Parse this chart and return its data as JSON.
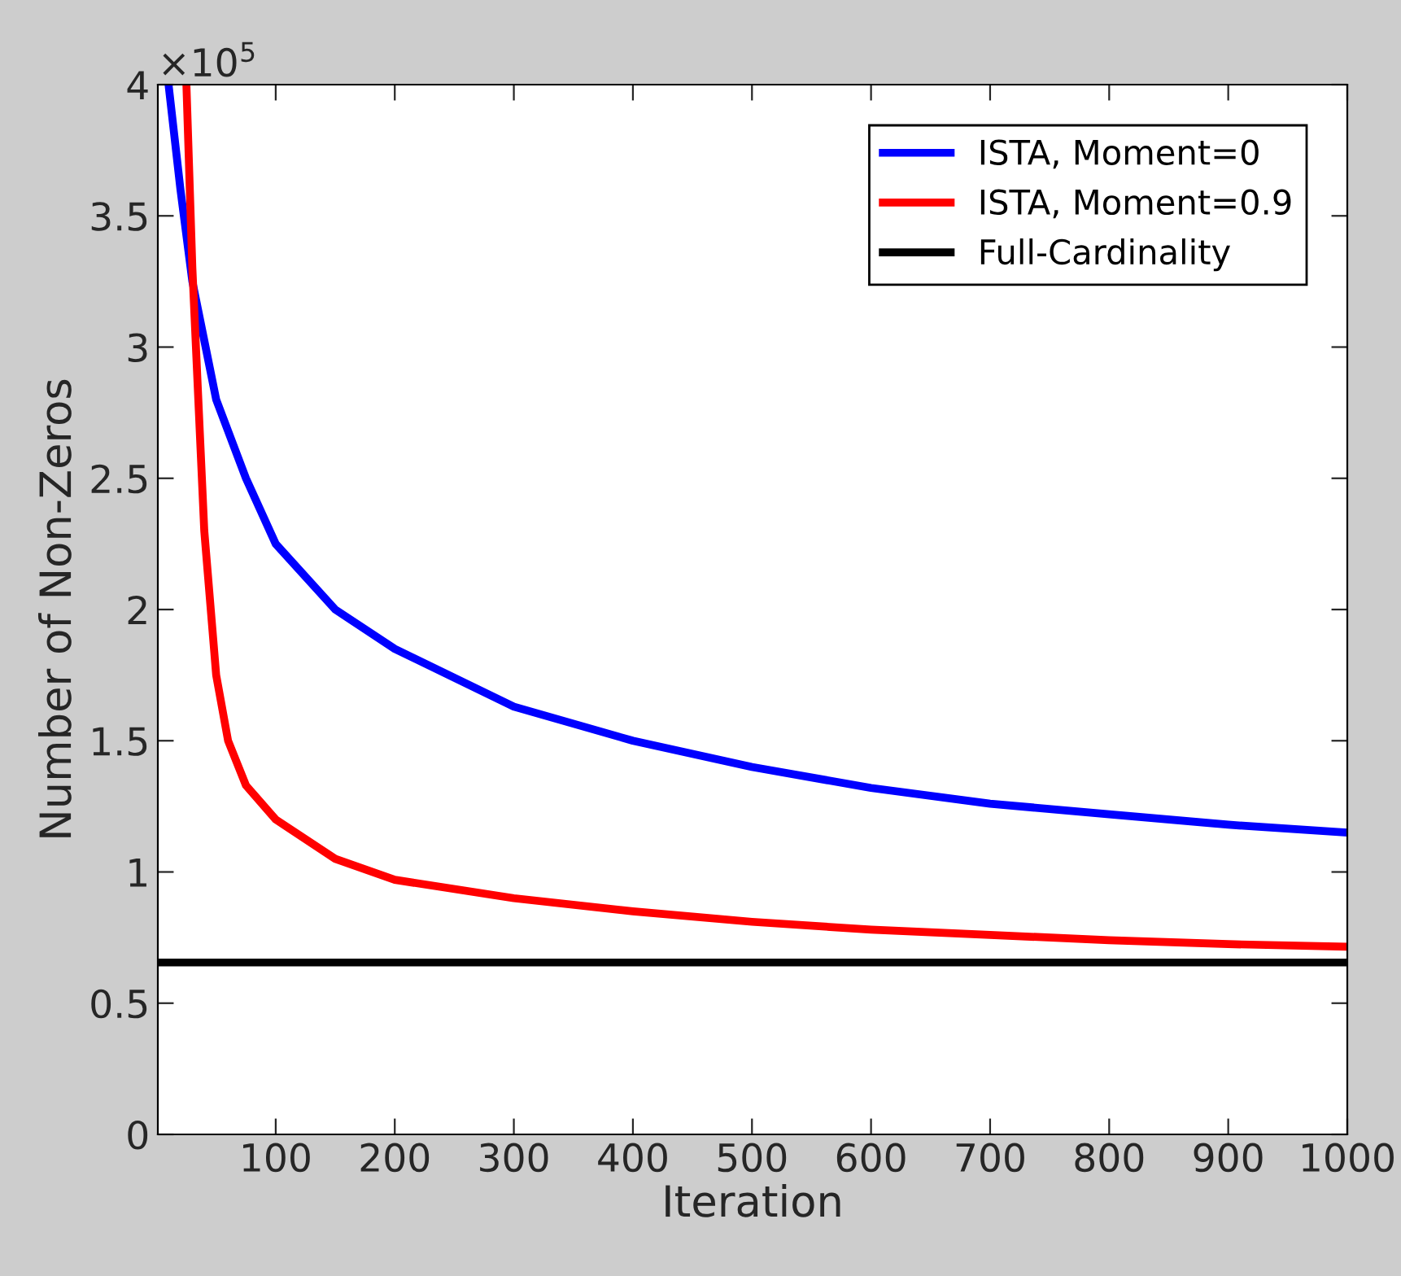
{
  "chart_data": {
    "type": "line",
    "xlabel": "Iteration",
    "ylabel": "Number of Non-Zeros",
    "annotations": [
      "×10$^{5}$"
    ],
    "series": [
      {
        "name": "ISTA, Moment=0",
        "color": "#0000ff",
        "x": [
          10,
          20,
          30,
          50,
          75,
          100,
          150,
          200,
          300,
          400,
          500,
          600,
          700,
          800,
          900,
          1000
        ],
        "values": [
          4.0,
          3.6,
          3.25,
          2.8,
          2.5,
          2.25,
          2.0,
          1.85,
          1.63,
          1.5,
          1.4,
          1.32,
          1.26,
          1.22,
          1.18,
          1.15
        ]
      },
      {
        "name": "ISTA, Moment=0.9",
        "color": "#ff0000",
        "x": [
          25,
          30,
          40,
          50,
          60,
          75,
          100,
          150,
          200,
          300,
          400,
          500,
          600,
          700,
          800,
          900,
          1000
        ],
        "values": [
          4.0,
          3.3,
          2.3,
          1.75,
          1.5,
          1.33,
          1.2,
          1.05,
          0.97,
          0.9,
          0.85,
          0.81,
          0.78,
          0.76,
          0.74,
          0.725,
          0.715
        ]
      },
      {
        "name": "Full-Cardinality",
        "color": "#000000",
        "x": [
          1,
          1000
        ],
        "values": [
          0.655,
          0.655
        ]
      }
    ],
    "xlim": [
      1,
      1000
    ],
    "xticks": [
      100,
      200,
      300,
      400,
      500,
      600,
      700,
      800,
      900,
      1000
    ],
    "ylim": [
      0,
      4
    ],
    "yticks": [
      0,
      0.5,
      1,
      1.5,
      2,
      2.5,
      3,
      3.5,
      4
    ],
    "grid": false,
    "legend": "top right",
    "marker": "none",
    "line_style": "solid"
  }
}
